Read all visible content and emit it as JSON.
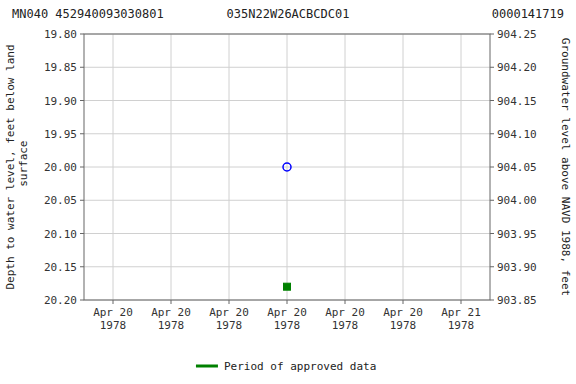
{
  "chart_data": {
    "type": "scatter",
    "title": "035N22W26ACBCDC01",
    "annotations": [
      "MN040 452940093030801",
      "0000141719"
    ],
    "categories": [
      "Apr 20\n1978",
      "Apr 20\n1978",
      "Apr 20\n1978",
      "Apr 20\n1978",
      "Apr 20\n1978",
      "Apr 20\n1978",
      "Apr 21\n1978"
    ],
    "ylabel": "Depth to water level, feet below land\n surface",
    "y2label": "Groundwater level above NAVD 1988, feet",
    "ylim": [
      20.2,
      19.8
    ],
    "yticks": [
      {
        "value": 19.8,
        "label": "19.80"
      },
      19.85,
      {
        "value": 19.9,
        "label": "19.90"
      },
      19.95,
      {
        "value": 20,
        "label": "20.00"
      },
      20.05,
      {
        "value": 20.1,
        "label": "20.10"
      },
      20.15,
      {
        "value": 20.2,
        "label": "20.20"
      }
    ],
    "y2lim": [
      903.85,
      904.25
    ],
    "y2ticks": [
      904.25,
      {
        "value": 904.2,
        "label": "904.20"
      },
      904.15,
      {
        "value": 904.1,
        "label": "904.10"
      },
      904.05,
      {
        "value": 904,
        "label": "904.00"
      },
      903.95,
      {
        "value": 903.9,
        "label": "903.90"
      },
      903.85
    ],
    "series": [
      {
        "color": "#0000ff",
        "marker": "open-circle",
        "values": [
          null,
          null,
          null,
          20,
          null,
          null,
          null
        ]
      },
      {
        "name": "Period of approved data",
        "color": "#008000",
        "marker": "square",
        "values": [
          null,
          null,
          null,
          20.18,
          null,
          null,
          null
        ]
      }
    ],
    "grid": true,
    "legend": "bottom"
  }
}
